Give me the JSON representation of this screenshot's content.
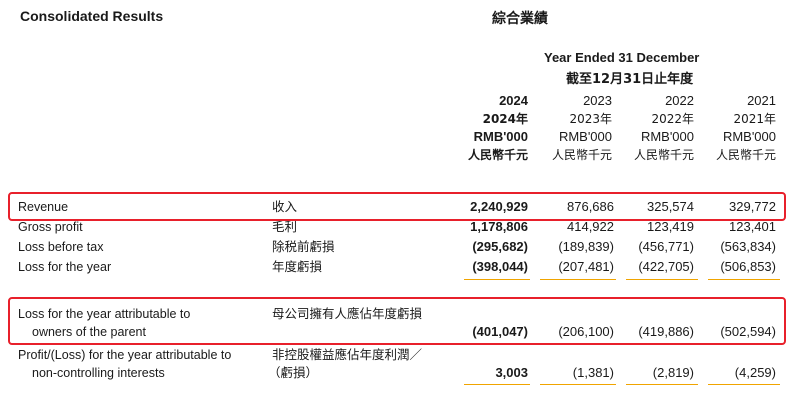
{
  "title_en": "Consolidated Results",
  "title_zh": "綜合業績",
  "period_en": "Year Ended 31 December",
  "period_zh": "截至12月31日止年度",
  "columns": [
    {
      "year": "2024",
      "year_zh": "2024年",
      "unit": "RMB'000",
      "unit_zh": "人民幣千元"
    },
    {
      "year": "2023",
      "year_zh": "2023年",
      "unit": "RMB'000",
      "unit_zh": "人民幣千元"
    },
    {
      "year": "2022",
      "year_zh": "2022年",
      "unit": "RMB'000",
      "unit_zh": "人民幣千元"
    },
    {
      "year": "2021",
      "year_zh": "2021年",
      "unit": "RMB'000",
      "unit_zh": "人民幣千元"
    }
  ],
  "rows": [
    {
      "label": "Revenue",
      "label_zh": "收入",
      "values": [
        "2,240,929",
        "876,686",
        "325,574",
        "329,772"
      ]
    },
    {
      "label": "Gross profit",
      "label_zh": "毛利",
      "values": [
        "1,178,806",
        "414,922",
        "123,419",
        "123,401"
      ]
    },
    {
      "label": "Loss before tax",
      "label_zh": "除税前虧損",
      "values": [
        "(295,682)",
        "(189,839)",
        "(456,771)",
        "(563,834)"
      ]
    },
    {
      "label": "Loss for the year",
      "label_zh": "年度虧損",
      "values": [
        "(398,044)",
        "(207,481)",
        "(422,705)",
        "(506,853)"
      ]
    },
    {
      "label_1": "Loss for the year attributable to",
      "label_2": "owners of the parent",
      "label_zh": "母公司擁有人應佔年度虧損",
      "values": [
        "(401,047)",
        "(206,100)",
        "(419,886)",
        "(502,594)"
      ]
    },
    {
      "label_1": "Profit/(Loss) for the year attributable to",
      "label_2": "non-controlling interests",
      "label_zh_1": "非控股權益應佔年度利潤／",
      "label_zh_2": "（虧損）",
      "values": [
        "3,003",
        "(1,381)",
        "(2,819)",
        "(4,259)"
      ]
    }
  ],
  "colors": {
    "highlight": "#e8202b",
    "accent_underline": "#f0a400"
  }
}
